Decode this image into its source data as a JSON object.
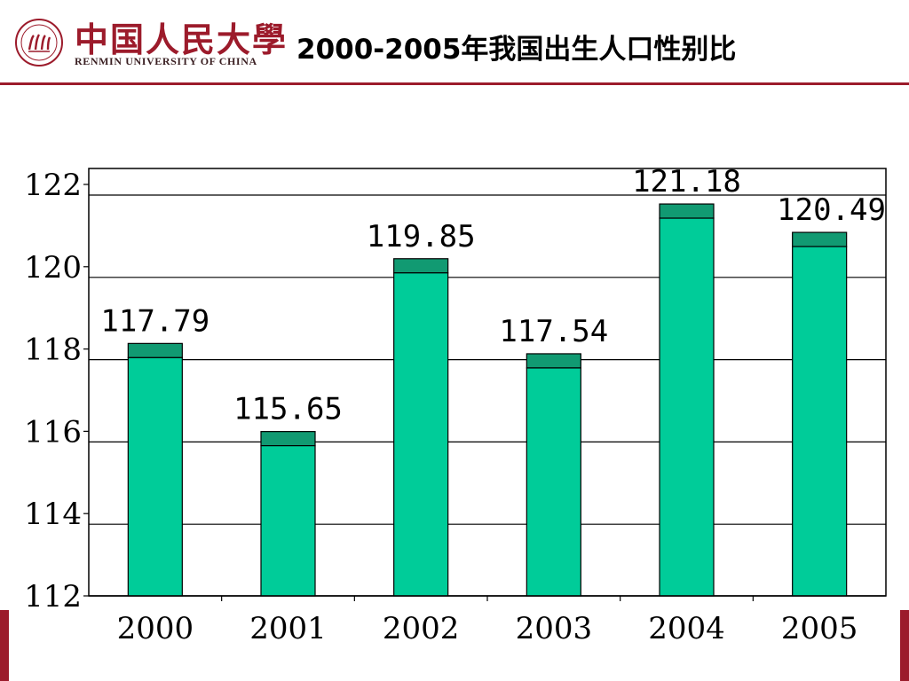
{
  "header": {
    "logo_cn": "中国人民大學",
    "logo_en": "RENMIN UNIVERSITY OF CHINA",
    "title": "2000-2005年我国出生人口性别比",
    "brand_color": "#9c1b2b"
  },
  "chart_data": {
    "type": "bar",
    "categories": [
      "2000",
      "2001",
      "2002",
      "2003",
      "2004",
      "2005"
    ],
    "values": [
      117.79,
      115.65,
      119.85,
      117.54,
      121.18,
      120.49
    ],
    "value_labels": [
      "117.79",
      "115.65",
      "119.85",
      "117.54",
      "121.18",
      "120.49"
    ],
    "ylim": [
      112,
      122
    ],
    "yticks": [
      "112",
      "114",
      "116",
      "118",
      "120",
      "122"
    ],
    "grid": true,
    "bar_color": "#00cc99",
    "bar_top_color": "#119a72"
  }
}
